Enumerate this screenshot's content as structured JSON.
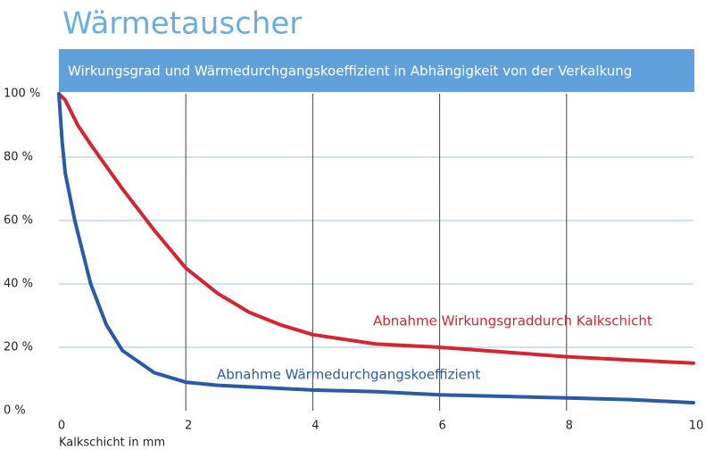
{
  "chart_data": {
    "type": "line",
    "title": "Wärmetauscher",
    "subtitle": "Wirkungsgrad und Wärmedurchgangskoeffizient in Abhängigkeit von der Verkalkung",
    "x_label": "Kalkschicht in mm",
    "xlim": [
      0,
      10
    ],
    "xticks": [
      0,
      2,
      4,
      6,
      8,
      10
    ],
    "ylim": [
      0,
      100
    ],
    "yticks": [
      {
        "value": 0,
        "label": "0 %"
      },
      {
        "value": 20,
        "label": "20 %"
      },
      {
        "value": 40,
        "label": "40 %"
      },
      {
        "value": 60,
        "label": "60 %"
      },
      {
        "value": 80,
        "label": "80 %"
      },
      {
        "value": 100,
        "label": "100 %"
      }
    ],
    "grid": true,
    "series": [
      {
        "name": "Abnahme Wirkungsgraddurch Kalkschicht",
        "color": "#d7252f",
        "x": [
          0,
          0.1,
          0.3,
          0.5,
          0.75,
          1,
          1.5,
          2,
          2.5,
          3,
          3.5,
          4,
          5,
          6,
          7,
          8,
          9,
          10
        ],
        "values": [
          100,
          98,
          90,
          84,
          77,
          70,
          57,
          45,
          37,
          31,
          27,
          24,
          21,
          20,
          18.5,
          17,
          16,
          15
        ]
      },
      {
        "name": "Abnahme Wärmedurchgangskoeffizient",
        "color": "#2a5aa8",
        "x": [
          0,
          0.05,
          0.1,
          0.25,
          0.5,
          0.75,
          1,
          1.5,
          2,
          2.5,
          3,
          4,
          5,
          6,
          7,
          8,
          9,
          10
        ],
        "values": [
          100,
          85,
          75,
          60,
          40,
          27,
          19,
          12,
          9,
          8,
          7.5,
          6.5,
          6,
          5,
          4.5,
          4,
          3.5,
          2.5
        ]
      }
    ]
  }
}
